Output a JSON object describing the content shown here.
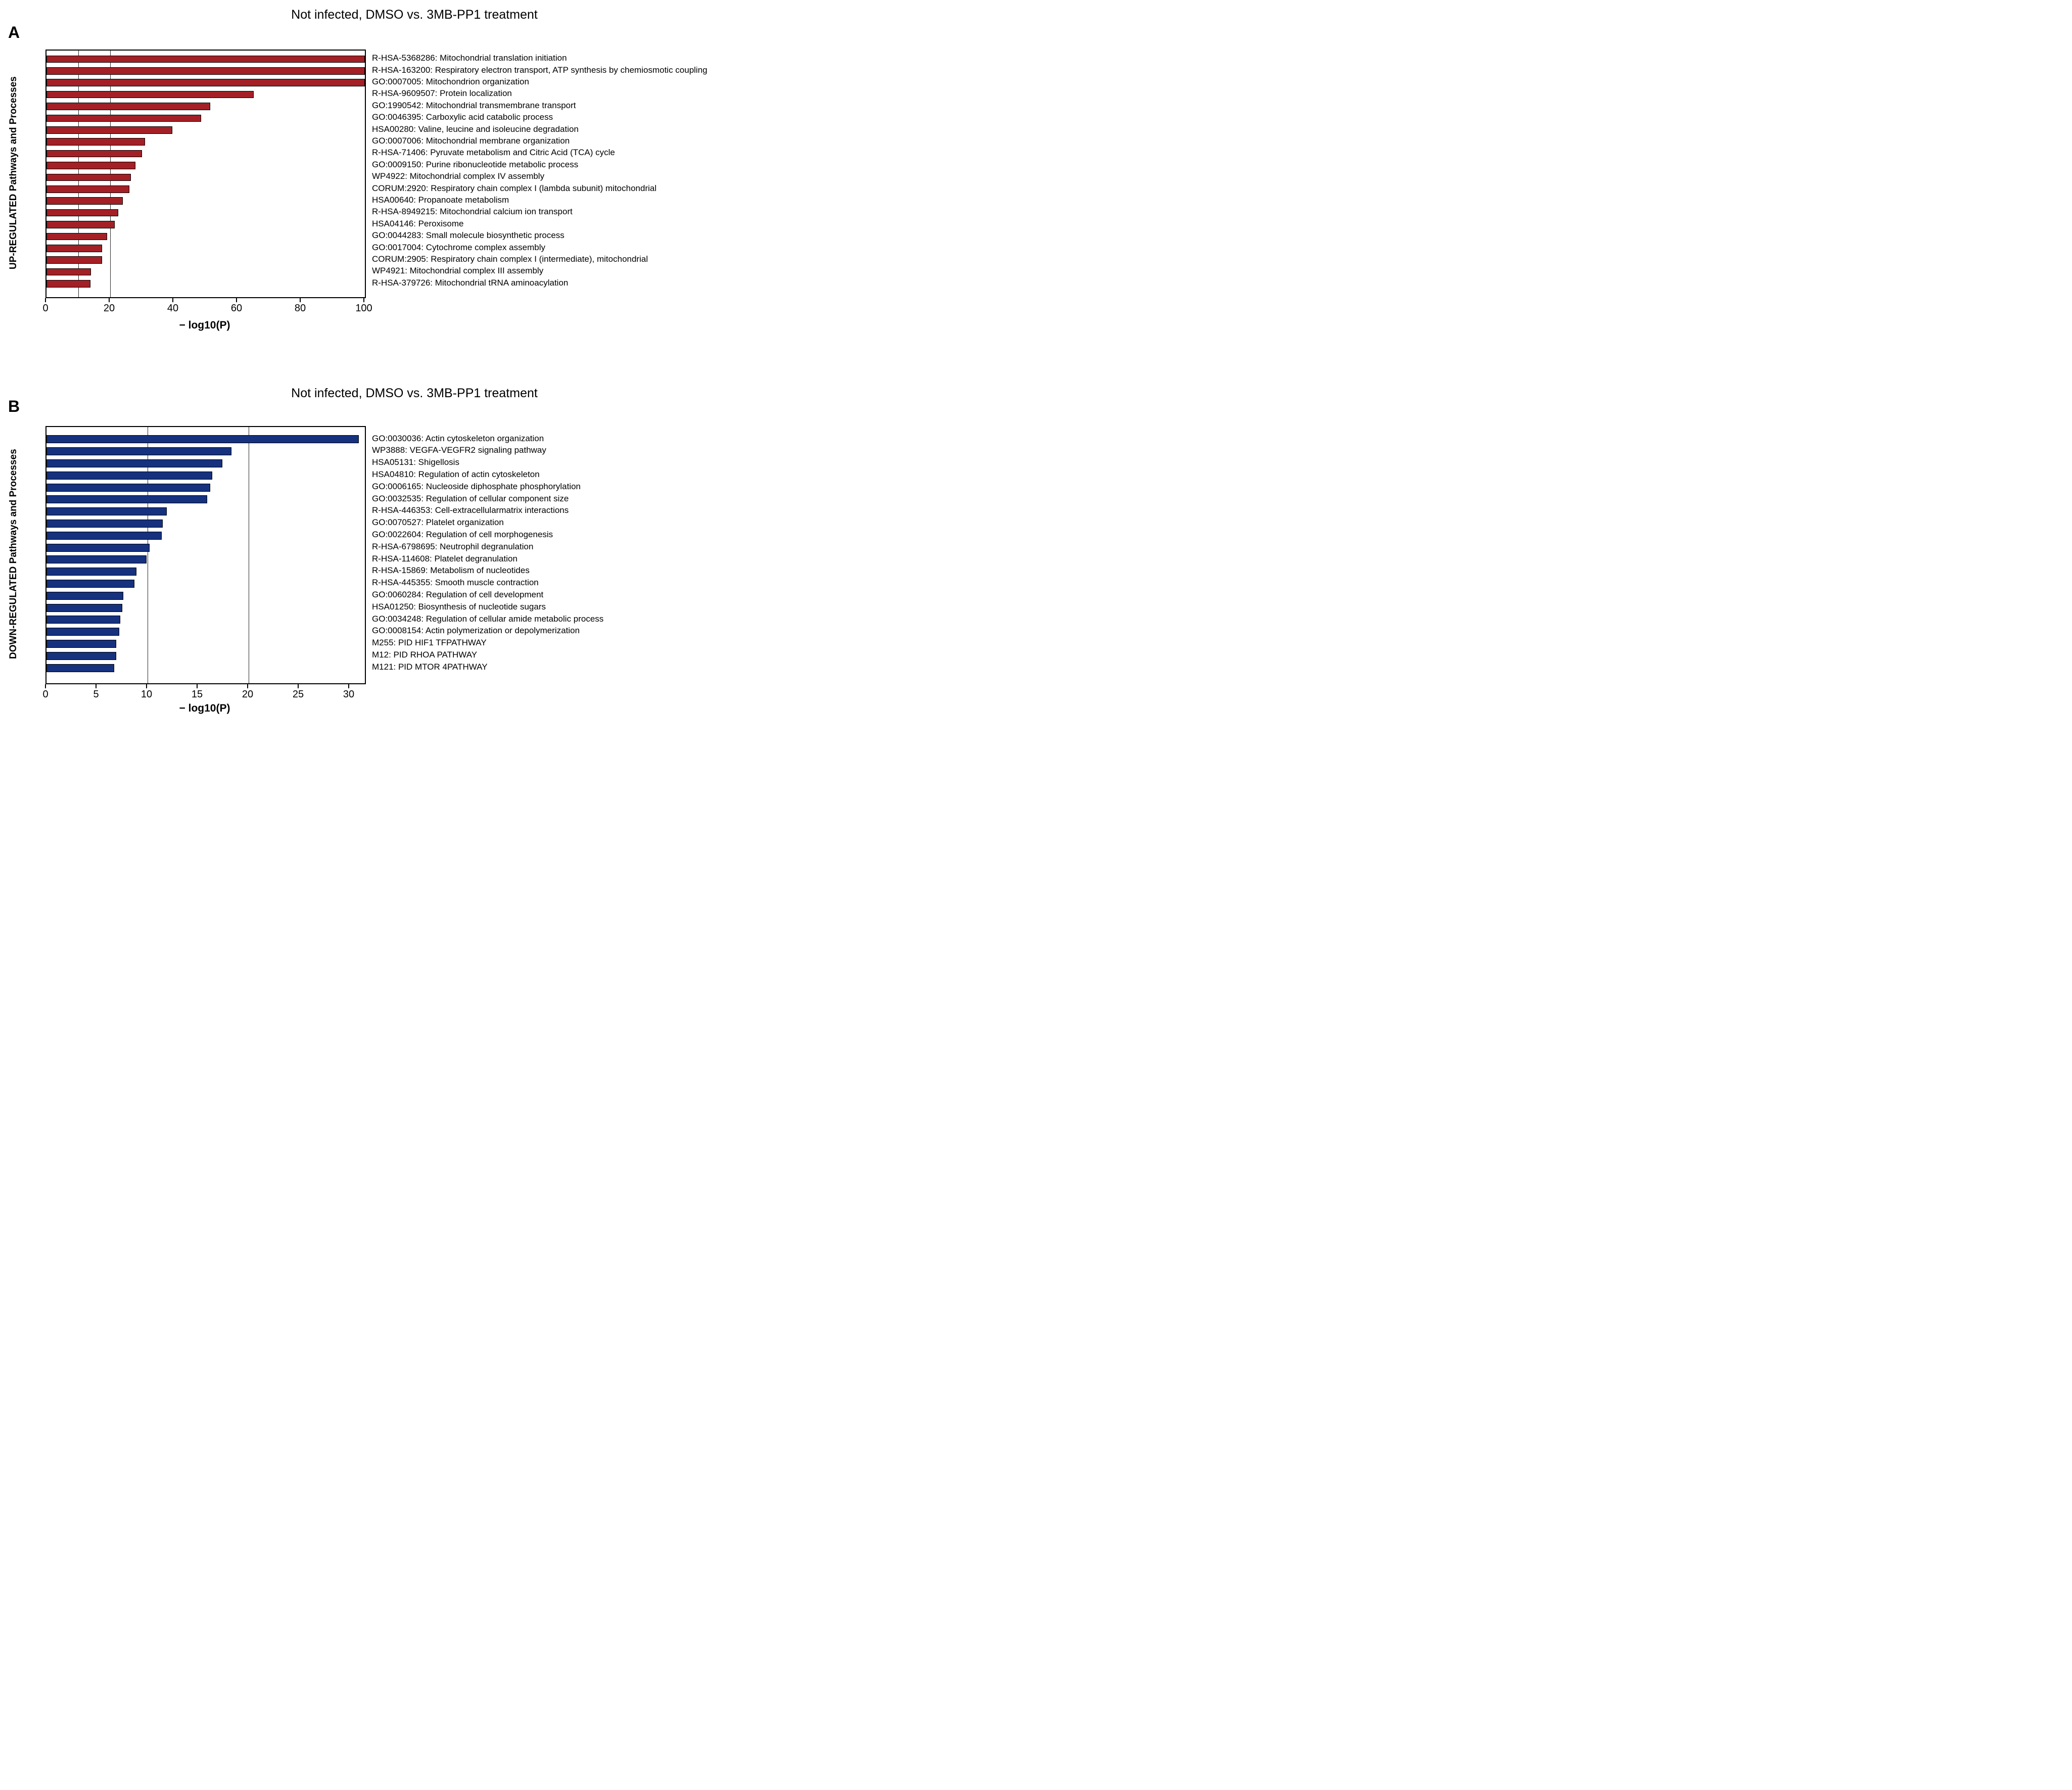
{
  "chart_data": [
    {
      "type": "bar",
      "orientation": "horizontal",
      "panel_label": "A",
      "title": "Not infected, DMSO vs. 3MB-PP1 treatment",
      "xlabel": "− log10(P)",
      "ylabel": "UP-REGULATED Pathways and Processes",
      "bar_color": "#a32026",
      "frame_color": "#000000",
      "grid_on": true,
      "legend": null,
      "xlim": [
        0,
        100
      ],
      "xticks": [
        0,
        20,
        40,
        60,
        80,
        100
      ],
      "gridlines_x": [
        10,
        20
      ],
      "categories": [
        "R-HSA-5368286: Mitochondrial translation initiation",
        "R-HSA-163200: Respiratory electron transport, ATP synthesis by chemiosmotic coupling",
        "GO:0007005: Mitochondrion organization",
        "R-HSA-9609507: Protein localization",
        "GO:1990542: Mitochondrial transmembrane transport",
        "GO:0046395: Carboxylic acid catabolic process",
        "HSA00280: Valine, leucine and isoleucine degradation",
        "GO:0007006: Mitochondrial membrane organization",
        "R-HSA-71406: Pyruvate metabolism and Citric Acid (TCA) cycle",
        "GO:0009150: Purine ribonucleotide metabolic process",
        "WP4922: Mitochondrial complex IV assembly",
        "CORUM:2920: Respiratory chain complex I (lambda subunit) mitochondrial",
        "HSA00640: Propanoate metabolism",
        "R-HSA-8949215: Mitochondrial calcium ion transport",
        "HSA04146: Peroxisome",
        "GO:0044283: Small molecule biosynthetic process",
        "GO:0017004: Cytochrome complex assembly",
        "CORUM:2905: Respiratory chain complex I (intermediate), mitochondrial",
        "WP4921: Mitochondrial complex III assembly",
        "R-HSA-379726: Mitochondrial tRNA aminoacylation"
      ],
      "values": [
        100,
        100,
        100,
        65,
        51.5,
        48.5,
        39.5,
        31,
        30,
        28,
        26.5,
        26,
        24,
        22.5,
        21.5,
        19,
        17.5,
        17.5,
        14,
        13.8
      ]
    },
    {
      "type": "bar",
      "orientation": "horizontal",
      "panel_label": "B",
      "title": "Not infected, DMSO vs. 3MB-PP1 treatment",
      "xlabel": "− log10(P)",
      "ylabel": "DOWN-REGULATED Pathways and Processes",
      "bar_color": "#16317e",
      "frame_color": "#000000",
      "grid_on": true,
      "legend": null,
      "xlim": [
        0,
        31.5
      ],
      "xticks": [
        0,
        5,
        10,
        15,
        20,
        25,
        30
      ],
      "gridlines_x": [
        10,
        20
      ],
      "categories": [
        "GO:0030036: Actin cytoskeleton organization",
        "WP3888: VEGFA-VEGFR2 signaling pathway",
        "HSA05131: Shigellosis",
        "HSA04810: Regulation of actin cytoskeleton",
        "GO:0006165: Nucleoside diphosphate phosphorylation",
        "GO:0032535: Regulation of cellular component size",
        "R-HSA-446353: Cell-extracellularmatrix interactions",
        "GO:0070527: Platelet organization",
        "GO:0022604: Regulation of cell morphogenesis",
        "R-HSA-6798695: Neutrophil degranulation",
        "R-HSA-114608: Platelet degranulation",
        "R-HSA-15869: Metabolism of nucleotides",
        "R-HSA-445355: Smooth muscle contraction",
        "GO:0060284: Regulation of cell development",
        "HSA01250: Biosynthesis of nucleotide sugars",
        "GO:0034248: Regulation of cellular amide metabolic process",
        "GO:0008154: Actin polymerization or depolymerization",
        "M255: PID HIF1 TFPATHWAY",
        "M12: PID RHOA PATHWAY",
        "M121: PID MTOR 4PATHWAY"
      ],
      "values": [
        30.9,
        18.3,
        17.4,
        16.4,
        16.2,
        15.9,
        11.9,
        11.5,
        11.4,
        10.2,
        9.9,
        8.9,
        8.7,
        7.6,
        7.5,
        7.3,
        7.2,
        6.9,
        6.9,
        6.7
      ]
    }
  ]
}
